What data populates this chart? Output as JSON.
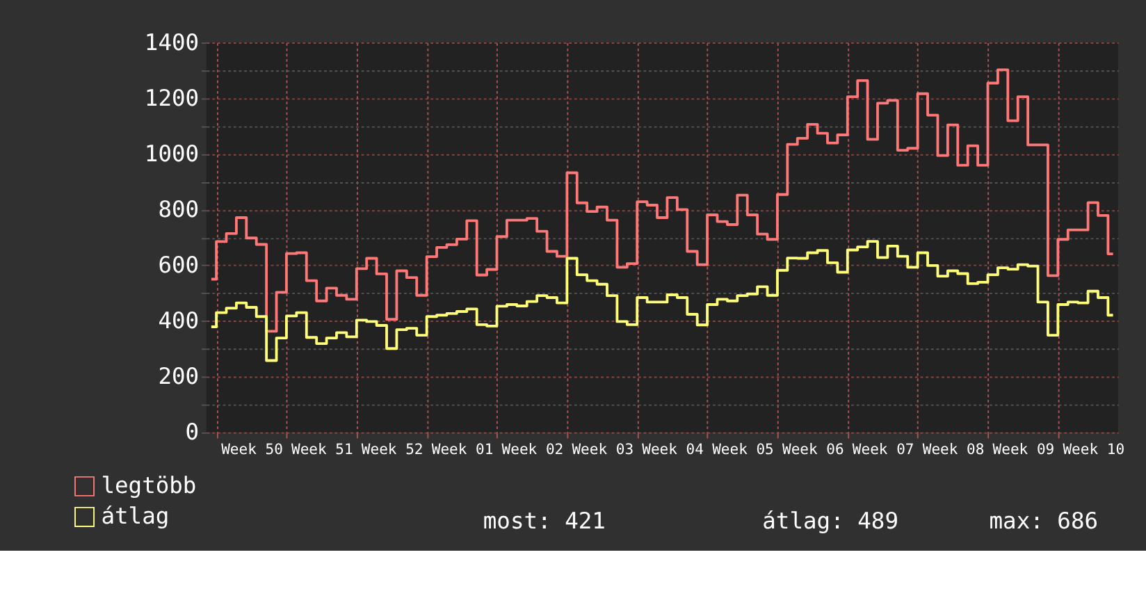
{
  "chart_data": {
    "type": "step",
    "categories": [
      null,
      null,
      null,
      null,
      "Week 50",
      null,
      null,
      null,
      null,
      null,
      null,
      "Week 51",
      null,
      null,
      null,
      null,
      null,
      null,
      "Week 52",
      null,
      null,
      null,
      null,
      null,
      null,
      "Week 01",
      null,
      null,
      null,
      null,
      null,
      null,
      "Week 02",
      null,
      null,
      null,
      null,
      null,
      null,
      "Week 03",
      null,
      null,
      null,
      null,
      null,
      null,
      "Week 04",
      null,
      null,
      null,
      null,
      null,
      null,
      "Week 05",
      null,
      null,
      null,
      null,
      null,
      null,
      "Week 06",
      null,
      null,
      null,
      null,
      null,
      null,
      "Week 07",
      null,
      null,
      null,
      null,
      null,
      null,
      "Week 08",
      null,
      null,
      null,
      null,
      null,
      null,
      "Week 09",
      null,
      null,
      null,
      null,
      null,
      null,
      "Week 10",
      null,
      null
    ],
    "series": [
      {
        "name": "legtöbb",
        "color": "#ff7777",
        "values": [
          550,
          685,
          714,
          771,
          698,
          675,
          363,
          503,
          642,
          645,
          545,
          472,
          518,
          492,
          478,
          588,
          625,
          569,
          406,
          580,
          556,
          492,
          631,
          664,
          674,
          694,
          760,
          565,
          585,
          703,
          762,
          762,
          768,
          722,
          650,
          632,
          932,
          824,
          793,
          809,
          762,
          593,
          606,
          828,
          816,
          771,
          843,
          800,
          650,
          602,
          781,
          757,
          746,
          852,
          781,
          712,
          693,
          854,
          1034,
          1056,
          1106,
          1074,
          1039,
          1068,
          1205,
          1263,
          1052,
          1182,
          1192,
          1013,
          1020,
          1216,
          1139,
          994,
          1104,
          959,
          1029,
          959,
          1254,
          1302,
          1119,
          1205,
          1032,
          1032,
          563,
          693,
          727,
          727,
          825,
          779,
          641
        ]
      },
      {
        "name": "átlag",
        "color": "#ffff77",
        "values": [
          379,
          430,
          446,
          465,
          449,
          416,
          258,
          339,
          418,
          430,
          341,
          319,
          339,
          358,
          343,
          403,
          398,
          384,
          301,
          369,
          374,
          349,
          416,
          421,
          427,
          434,
          443,
          387,
          382,
          453,
          459,
          454,
          470,
          491,
          484,
          465,
          625,
          566,
          545,
          532,
          491,
          398,
          387,
          484,
          468,
          468,
          494,
          484,
          424,
          386,
          459,
          478,
          472,
          491,
          497,
          523,
          492,
          582,
          626,
          625,
          645,
          653,
          609,
          575,
          655,
          666,
          686,
          628,
          669,
          632,
          593,
          645,
          599,
          561,
          580,
          570,
          534,
          539,
          566,
          591,
          586,
          602,
          597,
          468,
          349,
          459,
          468,
          465,
          507,
          484,
          421
        ]
      }
    ],
    "ylim": [
      0,
      1400
    ],
    "yticks": [
      0,
      {
        "value": 100,
        "label": null
      },
      200,
      {
        "value": 300,
        "label": null
      },
      400,
      {
        "value": 500,
        "label": null
      },
      600,
      {
        "value": 700,
        "label": null
      },
      800,
      {
        "value": 900,
        "label": null
      },
      1000,
      {
        "value": 1100,
        "label": null
      },
      1200,
      {
        "value": 1300,
        "label": null
      },
      1400
    ],
    "grid": true,
    "legend": "bottom left",
    "line_style": "solid",
    "marker": "none",
    "annotations": [
      "most: 421",
      "átlag: 489",
      "max: 686"
    ]
  }
}
